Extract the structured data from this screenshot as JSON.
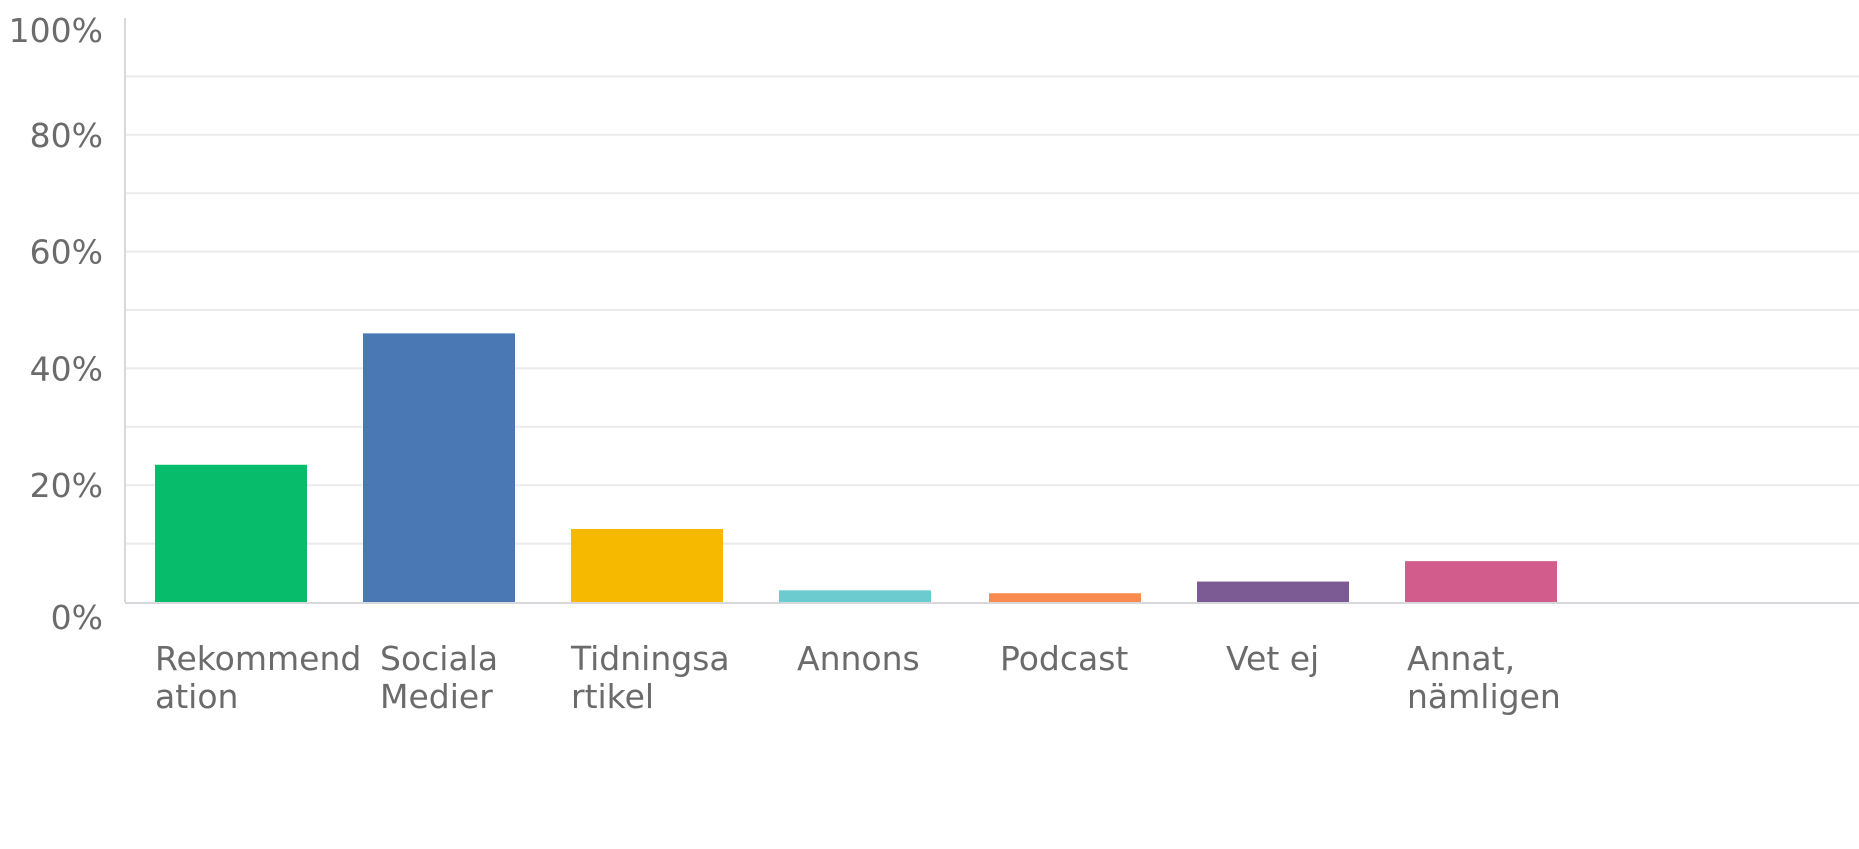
{
  "chart_data": {
    "type": "bar",
    "title": "",
    "xlabel": "",
    "ylabel": "",
    "ylim": [
      0,
      100
    ],
    "y_ticks": [
      "100%",
      "80%",
      "60%",
      "40%",
      "20%",
      "0%"
    ],
    "grid": true,
    "categories": [
      [
        "Rekommend",
        "ation"
      ],
      [
        "Sociala",
        "Medier"
      ],
      [
        "Tidningsa",
        "rtikel"
      ],
      [
        "Annons"
      ],
      [
        "Podcast"
      ],
      [
        "Vet ej"
      ],
      [
        "Annat,",
        "nämligen"
      ]
    ],
    "values": [
      23.5,
      46,
      12.5,
      2,
      1.5,
      3.5,
      7
    ],
    "colors": [
      "#07bd6b",
      "#4a78b5",
      "#f6b900",
      "#6ccbcf",
      "#f88b4d",
      "#7c5b95",
      "#d25d8c"
    ]
  }
}
